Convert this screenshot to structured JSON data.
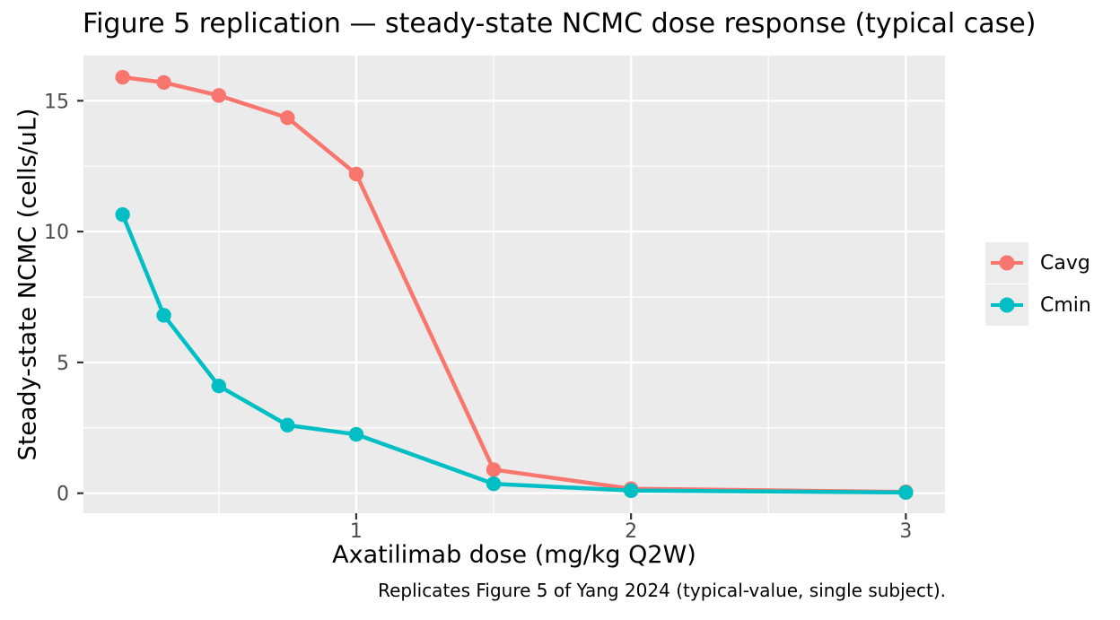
{
  "title": "Figure 5 replication — steady-state NCMC dose response (typical case)",
  "caption": "Replicates Figure 5 of Yang 2024 (typical-value, single subject).",
  "axes": {
    "x": {
      "title": "Axatilimab dose (mg/kg Q2W)",
      "tick_labels": [
        "1",
        "2",
        "3"
      ],
      "tick_values": [
        1,
        2,
        3
      ]
    },
    "y": {
      "title": "Steady-state NCMC (cells/uL)",
      "tick_labels": [
        "0",
        "5",
        "10",
        "15"
      ],
      "tick_values": [
        0,
        5,
        10,
        15
      ]
    }
  },
  "legend": {
    "items": [
      {
        "label": "Cavg",
        "color": "#F8766D"
      },
      {
        "label": "Cmin",
        "color": "#00BFC4"
      }
    ]
  },
  "colors": {
    "panel_background": "#EBEBEB",
    "gridline": "#FFFFFF",
    "tick_text": "#4D4D4D",
    "tick_mark": "#333333",
    "legend_key_background": "#ECECEC",
    "series_cavg": "#F8766D",
    "series_cmin": "#00BFC4"
  },
  "chart_data": {
    "type": "line",
    "title": "Figure 5 replication — steady-state NCMC dose response (typical case)",
    "xlabel": "Axatilimab dose (mg/kg Q2W)",
    "ylabel": "Steady-state NCMC (cells/uL)",
    "x": [
      0.15,
      0.3,
      0.5,
      0.75,
      1.0,
      1.5,
      2.0,
      3.0
    ],
    "series": [
      {
        "name": "Cavg",
        "color": "#F8766D",
        "values": [
          15.9,
          15.7,
          15.2,
          14.35,
          12.2,
          0.9,
          0.17,
          0.05
        ]
      },
      {
        "name": "Cmin",
        "color": "#00BFC4",
        "values": [
          10.65,
          6.8,
          4.1,
          2.6,
          2.25,
          0.36,
          0.1,
          0.03
        ]
      }
    ],
    "xlim": [
      0.0075,
      3.1425
    ],
    "ylim": [
      -0.765,
      16.725
    ],
    "x_ticks": [
      1,
      2,
      3
    ],
    "x_minor_ticks": [
      0.5,
      1.5,
      2.5
    ],
    "y_ticks": [
      0,
      5,
      10,
      15
    ],
    "y_minor_ticks": [
      2.5,
      7.5,
      12.5
    ],
    "grid": true,
    "legend_position": "right"
  }
}
